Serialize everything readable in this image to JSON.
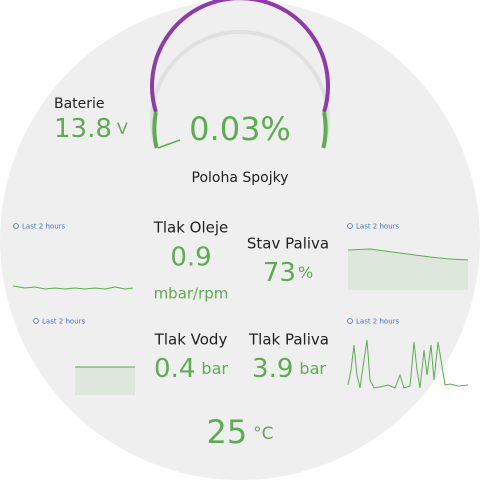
{
  "gauge": {
    "value": 0.03,
    "unit": "%",
    "name": "Poloha Spojky"
  },
  "sensors": [
    {
      "name": "Baterie",
      "value": 13.8,
      "unit": "V"
    },
    {
      "name": "Tlak Oleje",
      "value": 0.9,
      "unit": "mbar/rpm"
    },
    {
      "name": "Stav Paliva",
      "value": 73,
      "unit": "%"
    },
    {
      "name": "Tlak Vody",
      "value": 0.4,
      "unit": "bar"
    },
    {
      "name": "Tlak Paliva",
      "value": 3.9,
      "unit": "bar"
    },
    {
      "value": 25,
      "unit": "°C"
    }
  ],
  "history_labels": [
    "Last 2 hours",
    "Last 2 hours",
    "Last 2 hours",
    "Last 2 hours"
  ]
}
